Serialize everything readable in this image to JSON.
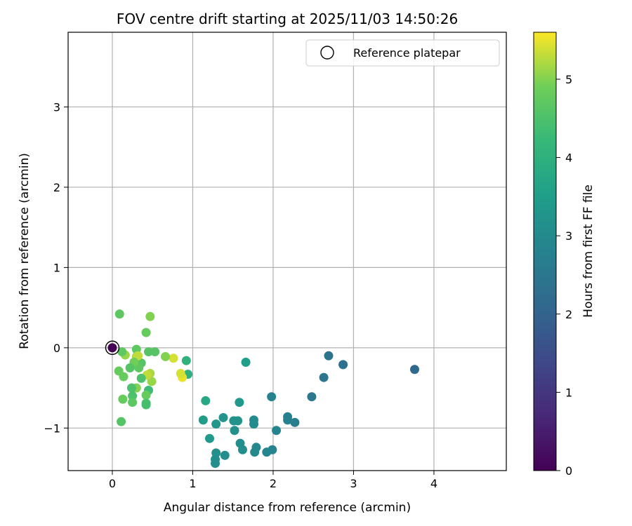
{
  "chart_data": {
    "type": "scatter",
    "title": "FOV centre drift starting at 2025/11/03 14:50:26",
    "xlabel": "Angular distance from reference (arcmin)",
    "ylabel": "Rotation from reference (arcmin)",
    "xlim": [
      -0.55,
      4.9
    ],
    "ylim": [
      -1.53,
      3.93
    ],
    "xticks": [
      0,
      1,
      2,
      3,
      4
    ],
    "yticks": [
      -1,
      0,
      1,
      2,
      3
    ],
    "xtick_labels": [
      "0",
      "1",
      "2",
      "3",
      "4"
    ],
    "ytick_labels": [
      "−1",
      "0",
      "1",
      "2",
      "3"
    ],
    "grid": true,
    "legend": {
      "position": "top-right",
      "label": "Reference platepar"
    },
    "reference_point": {
      "x": 0,
      "y": 0
    },
    "colorbar": {
      "label": "Hours from first FF file",
      "range": [
        0,
        5.6
      ],
      "ticks": [
        0,
        1,
        2,
        3,
        4,
        5
      ],
      "tick_labels": [
        "0",
        "1",
        "2",
        "3",
        "4",
        "5"
      ],
      "colormap": "viridis"
    },
    "points": [
      {
        "x": 0.0,
        "y": 0.0,
        "t": 0.0
      },
      {
        "x": 3.76,
        "y": -0.27,
        "t": 2.1
      },
      {
        "x": 2.87,
        "y": -0.21,
        "t": 2.35
      },
      {
        "x": 2.69,
        "y": -0.1,
        "t": 2.4
      },
      {
        "x": 2.63,
        "y": -0.37,
        "t": 2.45
      },
      {
        "x": 2.48,
        "y": -0.61,
        "t": 2.5
      },
      {
        "x": 1.98,
        "y": -0.61,
        "t": 2.8
      },
      {
        "x": 2.18,
        "y": -0.86,
        "t": 2.75
      },
      {
        "x": 2.18,
        "y": -0.9,
        "t": 2.78
      },
      {
        "x": 2.27,
        "y": -0.93,
        "t": 2.72
      },
      {
        "x": 2.04,
        "y": -1.03,
        "t": 2.85
      },
      {
        "x": 1.99,
        "y": -1.27,
        "t": 2.85
      },
      {
        "x": 1.92,
        "y": -1.3,
        "t": 2.9
      },
      {
        "x": 1.79,
        "y": -1.24,
        "t": 2.95
      },
      {
        "x": 1.77,
        "y": -1.3,
        "t": 2.95
      },
      {
        "x": 1.76,
        "y": -0.9,
        "t": 3.05
      },
      {
        "x": 1.76,
        "y": -0.95,
        "t": 3.05
      },
      {
        "x": 1.66,
        "y": -0.18,
        "t": 3.5
      },
      {
        "x": 1.58,
        "y": -0.68,
        "t": 3.35
      },
      {
        "x": 1.56,
        "y": -0.91,
        "t": 3.2
      },
      {
        "x": 1.51,
        "y": -0.91,
        "t": 3.2
      },
      {
        "x": 1.52,
        "y": -1.03,
        "t": 3.15
      },
      {
        "x": 1.59,
        "y": -1.19,
        "t": 3.1
      },
      {
        "x": 1.62,
        "y": -1.27,
        "t": 3.1
      },
      {
        "x": 1.38,
        "y": -0.87,
        "t": 3.25
      },
      {
        "x": 1.29,
        "y": -0.95,
        "t": 3.3
      },
      {
        "x": 1.4,
        "y": -1.34,
        "t": 3.1
      },
      {
        "x": 1.29,
        "y": -1.31,
        "t": 3.15
      },
      {
        "x": 1.28,
        "y": -1.39,
        "t": 3.1
      },
      {
        "x": 1.28,
        "y": -1.44,
        "t": 3.1
      },
      {
        "x": 1.21,
        "y": -1.13,
        "t": 3.4
      },
      {
        "x": 1.13,
        "y": -0.9,
        "t": 3.45
      },
      {
        "x": 1.16,
        "y": -0.66,
        "t": 3.75
      },
      {
        "x": 0.94,
        "y": -0.33,
        "t": 4.0
      },
      {
        "x": 0.92,
        "y": -0.16,
        "t": 4.05
      },
      {
        "x": 0.87,
        "y": -0.37,
        "t": 5.5
      },
      {
        "x": 0.85,
        "y": -0.32,
        "t": 5.4
      },
      {
        "x": 0.76,
        "y": -0.13,
        "t": 5.4
      },
      {
        "x": 0.66,
        "y": -0.11,
        "t": 5.0
      },
      {
        "x": 0.47,
        "y": 0.39,
        "t": 5.0
      },
      {
        "x": 0.09,
        "y": 0.42,
        "t": 4.7
      },
      {
        "x": 0.42,
        "y": 0.19,
        "t": 4.8
      },
      {
        "x": 0.53,
        "y": -0.05,
        "t": 4.6
      },
      {
        "x": 0.45,
        "y": -0.05,
        "t": 4.6
      },
      {
        "x": 0.47,
        "y": -0.32,
        "t": 5.2
      },
      {
        "x": 0.49,
        "y": -0.42,
        "t": 5.1
      },
      {
        "x": 0.43,
        "y": -0.34,
        "t": 5.3
      },
      {
        "x": 0.45,
        "y": -0.53,
        "t": 4.3
      },
      {
        "x": 0.42,
        "y": -0.59,
        "t": 4.8
      },
      {
        "x": 0.42,
        "y": -0.69,
        "t": 4.5
      },
      {
        "x": 0.42,
        "y": -0.71,
        "t": 4.4
      },
      {
        "x": 0.36,
        "y": -0.19,
        "t": 4.6
      },
      {
        "x": 0.33,
        "y": -0.25,
        "t": 4.7
      },
      {
        "x": 0.36,
        "y": -0.38,
        "t": 4.5
      },
      {
        "x": 0.3,
        "y": -0.02,
        "t": 4.7
      },
      {
        "x": 0.3,
        "y": -0.11,
        "t": 5.2
      },
      {
        "x": 0.32,
        "y": -0.1,
        "t": 5.3
      },
      {
        "x": 0.3,
        "y": -0.5,
        "t": 5.0
      },
      {
        "x": 0.27,
        "y": -0.18,
        "t": 4.9
      },
      {
        "x": 0.22,
        "y": -0.25,
        "t": 4.6
      },
      {
        "x": 0.25,
        "y": -0.6,
        "t": 4.5
      },
      {
        "x": 0.24,
        "y": -0.5,
        "t": 4.5
      },
      {
        "x": 0.25,
        "y": -0.68,
        "t": 4.7
      },
      {
        "x": 0.16,
        "y": -0.09,
        "t": 5.1
      },
      {
        "x": 0.12,
        "y": -0.05,
        "t": 4.7
      },
      {
        "x": 0.14,
        "y": -0.36,
        "t": 4.8
      },
      {
        "x": 0.13,
        "y": -0.64,
        "t": 4.8
      },
      {
        "x": 0.08,
        "y": -0.29,
        "t": 4.8
      },
      {
        "x": 0.11,
        "y": -0.92,
        "t": 4.6
      }
    ]
  }
}
